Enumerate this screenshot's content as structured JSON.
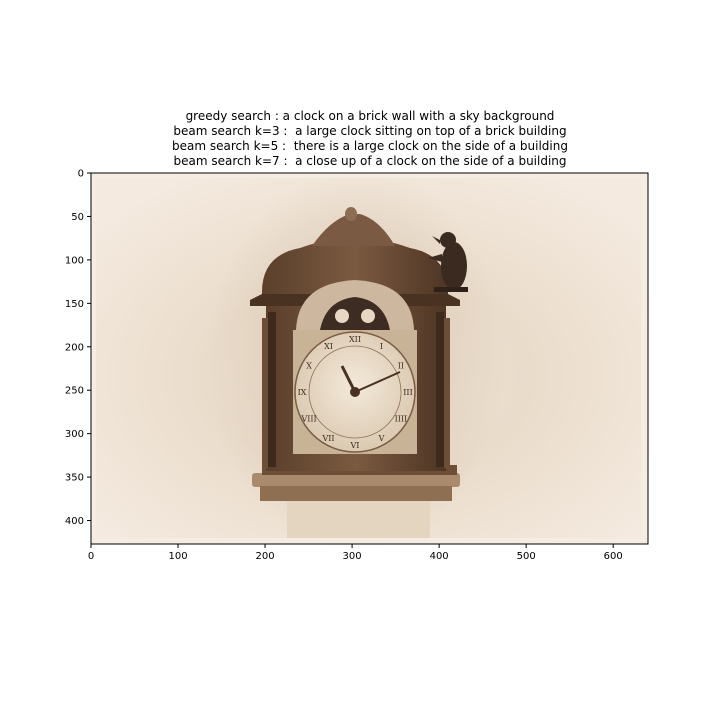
{
  "figure": {
    "title_lines": [
      "greedy search : a clock on a brick wall with a sky background",
      "beam search k=3 :  a large clock sitting on top of a brick building",
      "beam search k=5 :  there is a large clock on the side of a building",
      "beam search k=7 :  a close up of a clock on the side of a building"
    ],
    "image_subject": "antique bracket clock with a bird figure on a sepia background",
    "xlim": [
      0,
      640
    ],
    "ylim": [
      427,
      0
    ],
    "x_ticks": [
      0,
      100,
      200,
      300,
      400,
      500,
      600
    ],
    "y_ticks": [
      0,
      50,
      100,
      150,
      200,
      250,
      300,
      350,
      400
    ],
    "colors": {
      "sepia_bg": "#f1e6d8",
      "wood_dark": "#5a3f2b",
      "wood_mid": "#7b5a40",
      "dial": "#efe3d2"
    }
  },
  "clock_face": {
    "numerals": [
      "XII",
      "I",
      "II",
      "III",
      "IIII",
      "V",
      "VI",
      "VII",
      "VIII",
      "IX",
      "X",
      "XI"
    ]
  }
}
